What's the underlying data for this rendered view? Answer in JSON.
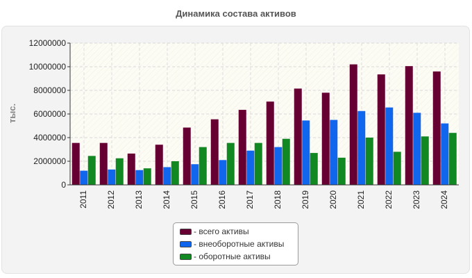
{
  "chart_data": {
    "type": "bar",
    "title": "Динамика состава активов",
    "ylabel": "тыс.",
    "xlabel": "",
    "ylim": [
      0,
      12000000
    ],
    "yticks": [
      0,
      2000000,
      4000000,
      6000000,
      8000000,
      10000000,
      12000000
    ],
    "grid": true,
    "legend_position": "bottom-center",
    "categories": [
      "2011",
      "2012",
      "2013",
      "2014",
      "2015",
      "2016",
      "2017",
      "2018",
      "2019",
      "2020",
      "2021",
      "2022",
      "2023",
      "2024"
    ],
    "series": [
      {
        "name": "- всего активы",
        "color": "#660033",
        "values": [
          3550000,
          3550000,
          2650000,
          3400000,
          4850000,
          5550000,
          6350000,
          7050000,
          8150000,
          7800000,
          10200000,
          9350000,
          10050000,
          9600000
        ]
      },
      {
        "name": "- внеоборотные активы",
        "color": "#1166ee",
        "values": [
          1200000,
          1300000,
          1250000,
          1500000,
          1750000,
          2100000,
          2900000,
          3200000,
          5450000,
          5500000,
          6250000,
          6550000,
          6100000,
          5200000
        ]
      },
      {
        "name": "- оборотные активы",
        "color": "#118822",
        "values": [
          2450000,
          2250000,
          1400000,
          2000000,
          3200000,
          3550000,
          3550000,
          3900000,
          2700000,
          2300000,
          4000000,
          2800000,
          4100000,
          4400000
        ]
      }
    ]
  }
}
